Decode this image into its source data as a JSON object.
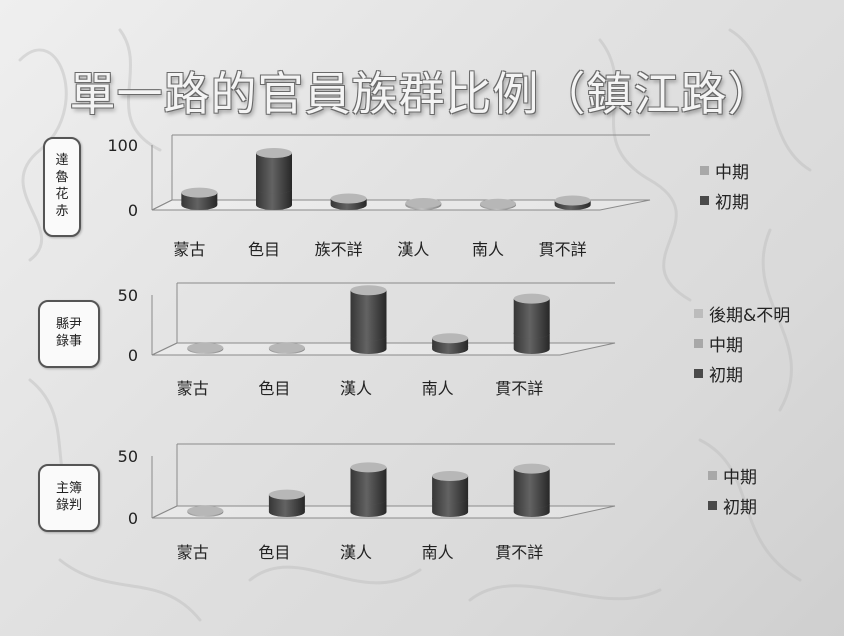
{
  "title": "單一路的官員族群比例（鎮江路）",
  "colors": {
    "early": "#4a4a4a",
    "mid": "#a8a8a8",
    "late": "#bcbcbc",
    "grid": "#8a8a8a"
  },
  "chart_data": [
    {
      "type": "bar",
      "row_label": [
        "達",
        "魯",
        "花",
        "赤"
      ],
      "categories": [
        "蒙古",
        "色目",
        "族不詳",
        "漢人",
        "南人",
        "貫不詳"
      ],
      "series": [
        {
          "name": "初期",
          "values": [
            2,
            25,
            3,
            0,
            0,
            3
          ]
        },
        {
          "name": "中期",
          "values": [
            17,
            55,
            7,
            3,
            2,
            4
          ]
        }
      ],
      "ylim": [
        0,
        100
      ],
      "yticks": [
        "0",
        "100"
      ]
    },
    {
      "type": "bar",
      "row_label": [
        "縣尹",
        "錄事"
      ],
      "categories": [
        "蒙古",
        "色目",
        "漢人",
        "南人",
        "貫不詳"
      ],
      "series": [
        {
          "name": "初期",
          "values": [
            0,
            0,
            11,
            2,
            13
          ]
        },
        {
          "name": "中期",
          "values": [
            1,
            1,
            38,
            7,
            29
          ]
        },
        {
          "name": "後期&不明",
          "values": [
            0,
            0,
            0,
            0,
            0
          ]
        }
      ],
      "ylim": [
        0,
        50
      ],
      "yticks": [
        "0",
        "50"
      ]
    },
    {
      "type": "bar",
      "row_label": [
        "主簿",
        "錄判"
      ],
      "categories": [
        "蒙古",
        "色目",
        "漢人",
        "南人",
        "貫不詳"
      ],
      "series": [
        {
          "name": "初期",
          "values": [
            0,
            2,
            10,
            11,
            7
          ]
        },
        {
          "name": "中期",
          "values": [
            1,
            12,
            26,
            18,
            28
          ]
        }
      ],
      "ylim": [
        0,
        50
      ],
      "yticks": [
        "0",
        "50"
      ]
    }
  ],
  "legends": [
    [
      "中期",
      "初期"
    ],
    [
      "後期&不明",
      "中期",
      "初期"
    ],
    [
      "中期",
      "初期"
    ]
  ]
}
